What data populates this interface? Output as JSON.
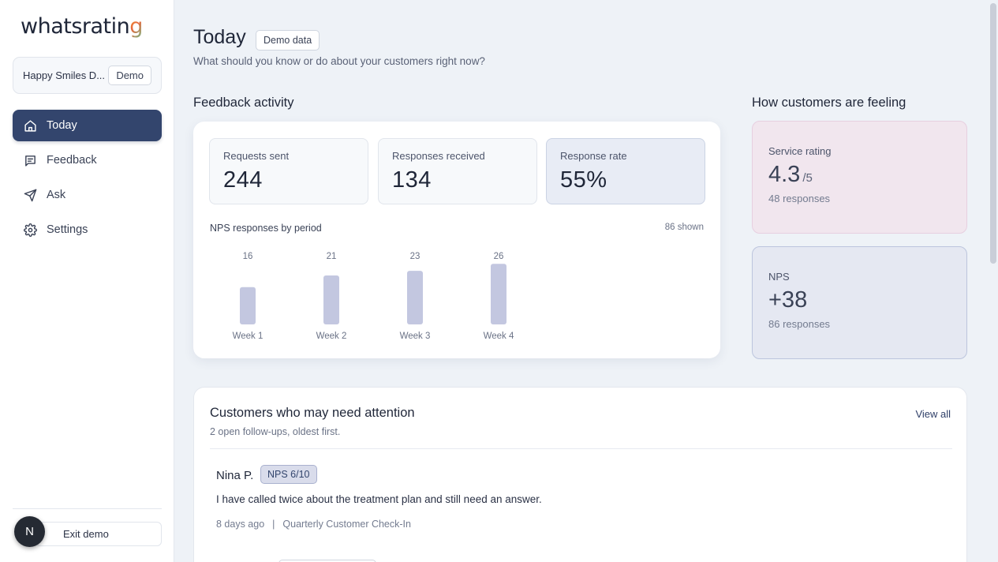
{
  "app": {
    "logo_text_main": "whatsratin",
    "logo_text_end": "g"
  },
  "org": {
    "name": "Happy Smiles D...",
    "badge": "Demo"
  },
  "nav": {
    "items": [
      {
        "label": "Today",
        "icon": "home-icon",
        "active": true
      },
      {
        "label": "Feedback",
        "icon": "message-square-icon",
        "active": false
      },
      {
        "label": "Ask",
        "icon": "send-icon",
        "active": false
      },
      {
        "label": "Settings",
        "icon": "gear-icon",
        "active": false
      }
    ]
  },
  "user": {
    "avatar_initial": "N",
    "exit_label": "Exit demo"
  },
  "header": {
    "title": "Today",
    "badge": "Demo data",
    "subtitle": "What should you know or do about your customers right now?"
  },
  "activity": {
    "section_title": "Feedback activity",
    "stats": [
      {
        "label": "Requests sent",
        "value": "244"
      },
      {
        "label": "Responses received",
        "value": "134"
      },
      {
        "label": "Response rate",
        "value": "55%"
      }
    ],
    "chart_title": "NPS responses by period",
    "chart_shown": "86 shown"
  },
  "chart_data": {
    "type": "bar",
    "title": "NPS responses by period",
    "categories": [
      "Week 1",
      "Week 2",
      "Week 3",
      "Week 4"
    ],
    "values": [
      16,
      21,
      23,
      26
    ],
    "xlabel": "",
    "ylabel": "",
    "grid": false,
    "bar_color": "#c3c7e0"
  },
  "feeling": {
    "section_title": "How customers are feeling",
    "service": {
      "label": "Service rating",
      "value": "4.3",
      "unit": "/5",
      "sub": "48 responses"
    },
    "nps": {
      "label": "NPS",
      "value": "+38",
      "sub": "86 responses"
    }
  },
  "attention": {
    "title": "Customers who may need attention",
    "subtitle": "2 open follow-ups, oldest first.",
    "view_all": "View all",
    "items": [
      {
        "name": "Nina P.",
        "score": "NPS 6/10",
        "message": "I have called twice about the treatment plan and still need an answer.",
        "age": "8 days ago",
        "sep": "|",
        "source": "Quarterly Customer Check-In"
      }
    ]
  },
  "colors": {
    "accent": "#33456d",
    "background": "#eef2f7",
    "pink_card": "#f1e6ee",
    "blue_card": "#e5e8f2"
  }
}
